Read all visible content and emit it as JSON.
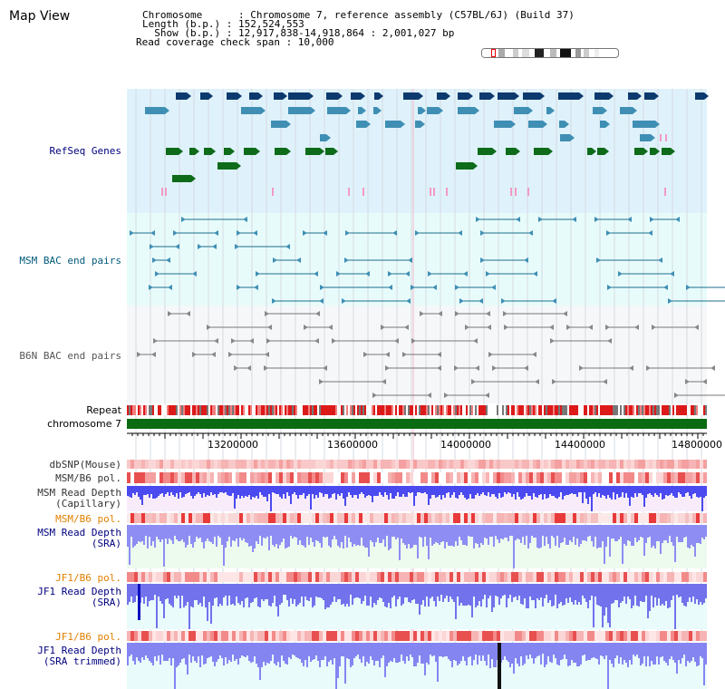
{
  "page": {
    "title": "Map View"
  },
  "info": {
    "line1": "Chromosome      : Chromosome 7, reference assembly (C57BL/6J) (Build 37)",
    "line2": "Length (b.p.) : 152,524,553",
    "line3": "  Show (b.p.) : 12,917,838-14,918,864 : 2,001,027 bp",
    "line4": "Read coverage check span : 10,000"
  },
  "tracks": {
    "refseq": "RefSeq Genes",
    "msm_bac": "MSM BAC end pairs",
    "b6n_bac": "B6N BAC end pairs",
    "repeat": "Repeat",
    "chrom": "chromosome 7",
    "dbsnp": "dbSNP(Mouse)",
    "msm_b6_pol_1": "MSM/B6 pol.",
    "msm_depth_cap_1": "MSM Read Depth",
    "msm_depth_cap_2": "(Capillary)",
    "msm_b6_pol_2": "MSM/B6 pol.",
    "msm_depth_sra_1": "MSM Read Depth",
    "msm_depth_sra_2": "(SRA)",
    "jf1_pol_1": "JF1/B6 pol.",
    "jf1_depth_sra_1": "JF1 Read Depth",
    "jf1_depth_sra_2": "(SRA)",
    "jf1_pol_2": "JF1/B6 pol.",
    "jf1_depth_trim_1": "JF1 Read Depth",
    "jf1_depth_trim_2": "(SRA trimmed)"
  },
  "axis": {
    "ticks": [
      "13200000",
      "13600000",
      "14000000",
      "14400000",
      "14800000"
    ]
  },
  "colors": {
    "refseq_bg": "#dff2fb",
    "msm_bg": "#e8fbfb",
    "b6n_bg": "#f6f7f9",
    "gene_dark": "#0d3a6e",
    "gene_mid": "#3f8fb4",
    "gene_green": "#0d6b1a",
    "pink": "#f39ac4",
    "msm_line": "#1c6f8c",
    "b6n_line": "#777777",
    "repeat_red": "#dd1a1a",
    "chrom_green": "#0a6b12",
    "depth_blue": "#2a2ef0",
    "depth_light": "#8080f0",
    "label_navy": "#00007f",
    "label_orange": "#e08000",
    "label_teal": "#005a7a"
  }
}
